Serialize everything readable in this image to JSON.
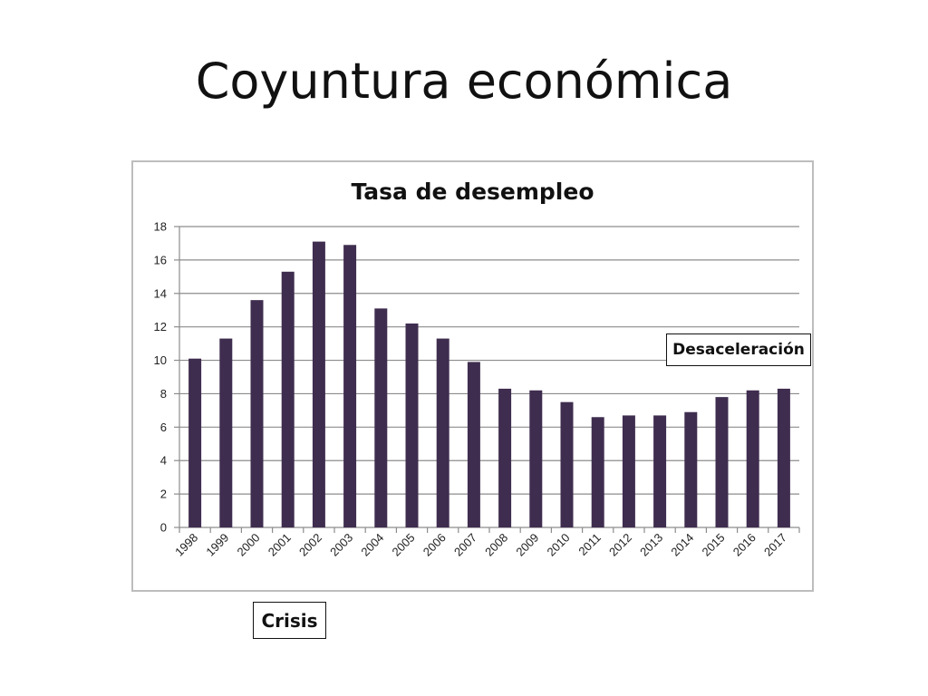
{
  "slide": {
    "title": "Coyuntura económica"
  },
  "annotations": {
    "desaceleracion": "Desaceleración",
    "crisis": "Crisis"
  },
  "chart_data": {
    "type": "bar",
    "title": "Tasa de desempleo",
    "xlabel": "",
    "ylabel": "",
    "categories": [
      "1998",
      "1999",
      "2000",
      "2001",
      "2002",
      "2003",
      "2004",
      "2005",
      "2006",
      "2007",
      "2008",
      "2009",
      "2010",
      "2011",
      "2012",
      "2013",
      "2014",
      "2015",
      "2016",
      "2017"
    ],
    "values": [
      10.1,
      11.3,
      13.6,
      15.3,
      17.1,
      16.9,
      13.1,
      12.2,
      11.3,
      9.9,
      8.3,
      8.2,
      7.5,
      6.6,
      6.7,
      6.7,
      6.9,
      7.8,
      8.2,
      8.3
    ],
    "ylim": [
      0,
      18
    ],
    "yticks": [
      0,
      2,
      4,
      6,
      8,
      10,
      12,
      14,
      16,
      18
    ],
    "grid": true,
    "legend": "none",
    "bar_color": "#3f2d4f",
    "grid_color": "#8c8c8c"
  }
}
